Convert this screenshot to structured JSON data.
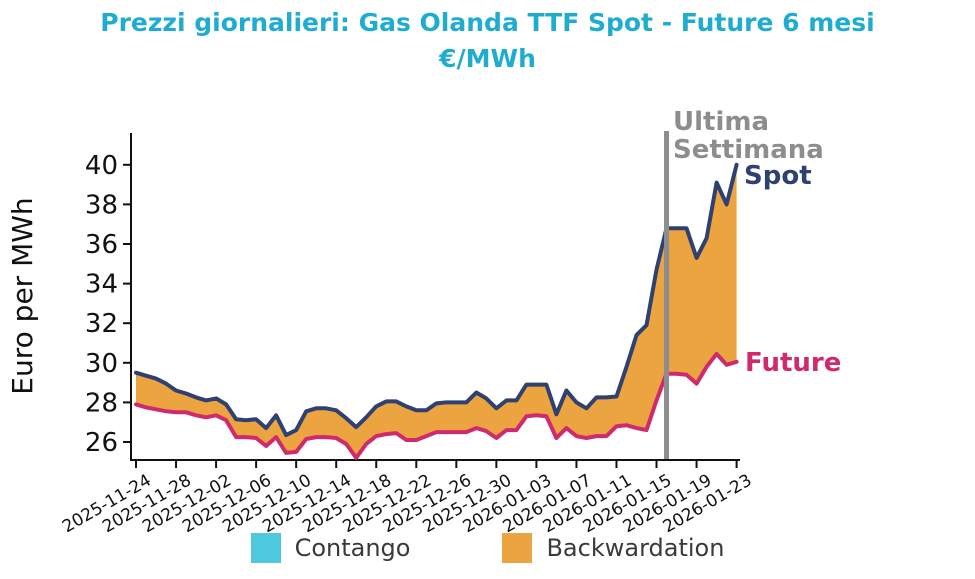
{
  "title": {
    "line1": "Prezzi giornalieri: Gas Olanda TTF Spot - Future 6 mesi",
    "line2": "€/MWh"
  },
  "annotations": {
    "vline_label_line1": "Ultima",
    "vline_label_line2": "Settimana",
    "spot_label": "Spot",
    "future_label": "Future"
  },
  "legend": [
    {
      "label": "Contango",
      "color": "#4ec8dc"
    },
    {
      "label": "Backwardation",
      "color": "#eba43f"
    }
  ],
  "colors": {
    "title": "#1fadcf",
    "spot_line": "#2e4170",
    "future_line": "#d02a6e",
    "backwardation_fill": "#eba43f",
    "contango_fill": "#4ec8dc",
    "vline": "#8d8d8d",
    "axis": "#111111",
    "legend_text": "#3a3a3a"
  },
  "chart_data": {
    "type": "area",
    "title": "Prezzi giornalieri: Gas Olanda TTF Spot - Future 6 mesi €/MWh",
    "xlabel": "",
    "ylabel": "Euro per MWh",
    "ylim": [
      25.1,
      41.6
    ],
    "yticks": [
      26,
      28,
      30,
      32,
      34,
      36,
      38,
      40
    ],
    "grid": false,
    "legend_position": "bottom",
    "x_tick_labels": [
      "2025-11-24",
      "2025-11-28",
      "2025-12-02",
      "2025-12-06",
      "2025-12-10",
      "2025-12-14",
      "2025-12-18",
      "2025-12-22",
      "2025-12-26",
      "2025-12-30",
      "2026-01-03",
      "2026-01-07",
      "2026-01-11",
      "2026-01-15",
      "2026-01-19",
      "2026-01-23"
    ],
    "dates": [
      "2025-11-24",
      "2025-11-25",
      "2025-11-26",
      "2025-11-27",
      "2025-11-28",
      "2025-11-29",
      "2025-11-30",
      "2025-12-01",
      "2025-12-02",
      "2025-12-03",
      "2025-12-04",
      "2025-12-05",
      "2025-12-06",
      "2025-12-07",
      "2025-12-08",
      "2025-12-09",
      "2025-12-10",
      "2025-12-11",
      "2025-12-12",
      "2025-12-13",
      "2025-12-14",
      "2025-12-15",
      "2025-12-16",
      "2025-12-17",
      "2025-12-18",
      "2025-12-19",
      "2025-12-20",
      "2025-12-21",
      "2025-12-22",
      "2025-12-23",
      "2025-12-24",
      "2025-12-25",
      "2025-12-26",
      "2025-12-27",
      "2025-12-28",
      "2025-12-29",
      "2025-12-30",
      "2025-12-31",
      "2026-01-01",
      "2026-01-02",
      "2026-01-03",
      "2026-01-04",
      "2026-01-05",
      "2026-01-06",
      "2026-01-07",
      "2026-01-08",
      "2026-01-09",
      "2026-01-10",
      "2026-01-11",
      "2026-01-12",
      "2026-01-13",
      "2026-01-14",
      "2026-01-15",
      "2026-01-16",
      "2026-01-17",
      "2026-01-18",
      "2026-01-19",
      "2026-01-20",
      "2026-01-21",
      "2026-01-22",
      "2026-01-23"
    ],
    "series": [
      {
        "name": "Spot",
        "color": "#2e4170",
        "values": [
          29.5,
          29.35,
          29.2,
          28.95,
          28.6,
          28.45,
          28.25,
          28.1,
          28.2,
          27.9,
          27.15,
          27.1,
          27.15,
          26.7,
          27.35,
          26.35,
          26.6,
          27.55,
          27.7,
          27.7,
          27.6,
          27.2,
          26.75,
          27.25,
          27.8,
          28.05,
          28.05,
          27.8,
          27.6,
          27.6,
          27.95,
          28.0,
          28.0,
          28.0,
          28.5,
          28.2,
          27.7,
          28.1,
          28.1,
          28.9,
          28.9,
          28.9,
          27.4,
          28.6,
          28.0,
          27.7,
          28.25,
          28.25,
          28.3,
          29.8,
          31.4,
          31.9,
          34.7,
          36.8,
          36.8,
          36.8,
          35.3,
          36.3,
          39.1,
          38.0,
          40.0
        ]
      },
      {
        "name": "Future",
        "color": "#d02a6e",
        "values": [
          27.9,
          27.75,
          27.65,
          27.55,
          27.5,
          27.5,
          27.35,
          27.25,
          27.35,
          27.1,
          26.25,
          26.25,
          26.2,
          25.8,
          26.25,
          25.45,
          25.5,
          26.15,
          26.25,
          26.25,
          26.2,
          25.9,
          25.2,
          25.9,
          26.3,
          26.4,
          26.45,
          26.1,
          26.1,
          26.3,
          26.5,
          26.5,
          26.5,
          26.5,
          26.7,
          26.55,
          26.2,
          26.6,
          26.6,
          27.3,
          27.35,
          27.3,
          26.2,
          26.7,
          26.3,
          26.2,
          26.3,
          26.3,
          26.8,
          26.85,
          26.7,
          26.6,
          28.1,
          29.45,
          29.45,
          29.4,
          28.95,
          29.8,
          30.45,
          29.9,
          30.05
        ]
      }
    ],
    "fill_between": {
      "backwardation_color": "#eba43f",
      "contango_color": "#4ec8dc",
      "note": "area between Spot and Future; Spot above Future (backwardation) for the whole visible range"
    },
    "vline_date": "2026-01-16",
    "vline_index": 53
  }
}
